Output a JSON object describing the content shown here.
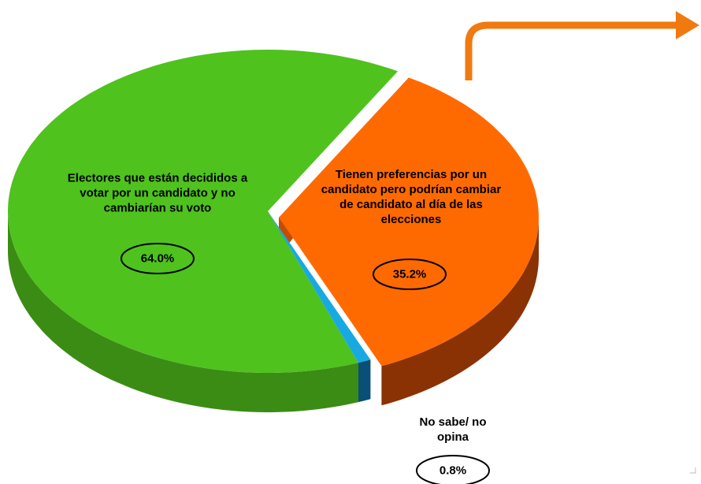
{
  "chart_data": {
    "type": "pie",
    "categories": [
      "Electores que están decididos a votar por un candidato y no cambiarían su voto",
      "Tienen preferencias por un candidato pero podrían cambiar de candidato al día de las elecciones",
      "No sabe/ no opina"
    ],
    "values": [
      64.0,
      35.2,
      0.8
    ],
    "value_labels": [
      "64.0%",
      "35.2%",
      "0.8%"
    ],
    "colors": [
      "#4fc21e",
      "#ff6a00",
      "#19a9e1"
    ]
  }
}
